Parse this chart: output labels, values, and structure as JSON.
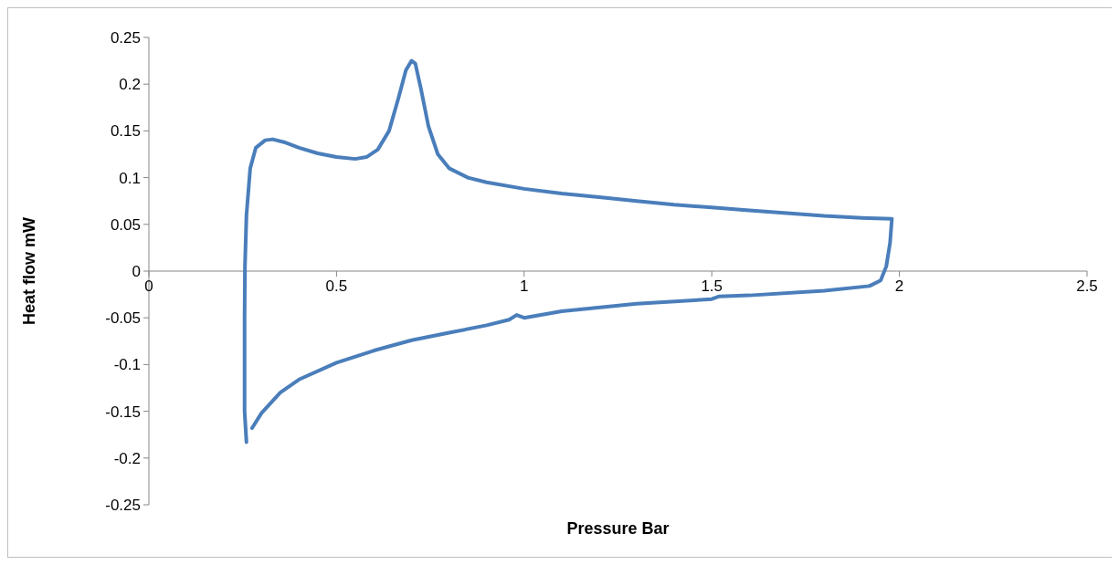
{
  "chart_data": {
    "type": "line",
    "xlabel": "Pressure Bar",
    "ylabel": "Heat flow mW",
    "xlim": [
      0,
      2.5
    ],
    "xticks": [
      0,
      0.5,
      1,
      1.5,
      2,
      2.5
    ],
    "ylim": [
      -0.25,
      0.25
    ],
    "yticks": [
      -0.25,
      -0.2,
      -0.15,
      -0.1,
      -0.05,
      0,
      0.05,
      0.1,
      0.15,
      0.2,
      0.25
    ],
    "grid": false,
    "marker": "none",
    "line_style": "solid",
    "series": [
      {
        "color": "#4a7ebb",
        "x": [
          0.26,
          0.255,
          0.255,
          0.256,
          0.26,
          0.27,
          0.285,
          0.31,
          0.33,
          0.36,
          0.4,
          0.45,
          0.5,
          0.55,
          0.58,
          0.61,
          0.64,
          0.665,
          0.685,
          0.7,
          0.71,
          0.725,
          0.745,
          0.77,
          0.8,
          0.85,
          0.9,
          1.0,
          1.1,
          1.2,
          1.3,
          1.4,
          1.5,
          1.6,
          1.7,
          1.8,
          1.9,
          1.98,
          1.975,
          1.965,
          1.95,
          1.92,
          1.8,
          1.6,
          1.52,
          1.5,
          1.3,
          1.1,
          1.0,
          0.98,
          0.96,
          0.9,
          0.8,
          0.7,
          0.6,
          0.5,
          0.4,
          0.35,
          0.3,
          0.275
        ],
        "values": [
          -0.183,
          -0.15,
          -0.05,
          0.005,
          0.06,
          0.11,
          0.132,
          0.14,
          0.141,
          0.138,
          0.132,
          0.126,
          0.122,
          0.12,
          0.122,
          0.13,
          0.15,
          0.185,
          0.215,
          0.225,
          0.222,
          0.195,
          0.155,
          0.125,
          0.11,
          0.1,
          0.095,
          0.088,
          0.083,
          0.079,
          0.075,
          0.071,
          0.068,
          0.065,
          0.062,
          0.059,
          0.057,
          0.056,
          0.03,
          0.005,
          -0.01,
          -0.016,
          -0.021,
          -0.026,
          -0.027,
          -0.03,
          -0.035,
          -0.043,
          -0.05,
          -0.047,
          -0.052,
          -0.058,
          -0.066,
          -0.074,
          -0.085,
          -0.098,
          -0.116,
          -0.13,
          -0.152,
          -0.168
        ]
      }
    ]
  }
}
